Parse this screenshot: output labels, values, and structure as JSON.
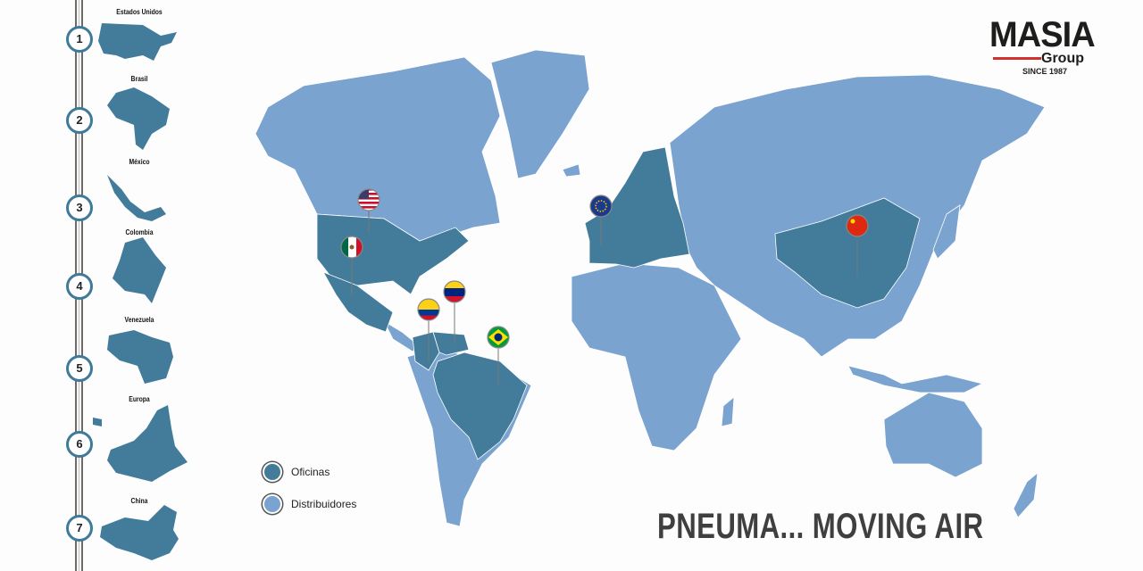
{
  "brand": {
    "name": "MASIA",
    "sub": "Group",
    "since": "SINCE 1987",
    "accent": "#d0312d"
  },
  "colors": {
    "offices": "#437c9a",
    "distributors": "#7aa3cf"
  },
  "sidebar": {
    "items": [
      {
        "number": "1",
        "label": "Estados Unidos"
      },
      {
        "number": "2",
        "label": "Brasil"
      },
      {
        "number": "3",
        "label": "México"
      },
      {
        "number": "4",
        "label": "Colombia"
      },
      {
        "number": "5",
        "label": "Venezuela"
      },
      {
        "number": "6",
        "label": "Europa"
      },
      {
        "number": "7",
        "label": "China"
      }
    ]
  },
  "legend": {
    "offices": "Oficinas",
    "distributors": "Distribuidores"
  },
  "pins": [
    {
      "flag": "usa-flag"
    },
    {
      "flag": "mexico-flag"
    },
    {
      "flag": "colombia-flag"
    },
    {
      "flag": "venezuela-flag"
    },
    {
      "flag": "brazil-flag"
    },
    {
      "flag": "eu-flag"
    },
    {
      "flag": "china-flag"
    }
  ],
  "slogan": "PNEUMA... MOVING AIR"
}
